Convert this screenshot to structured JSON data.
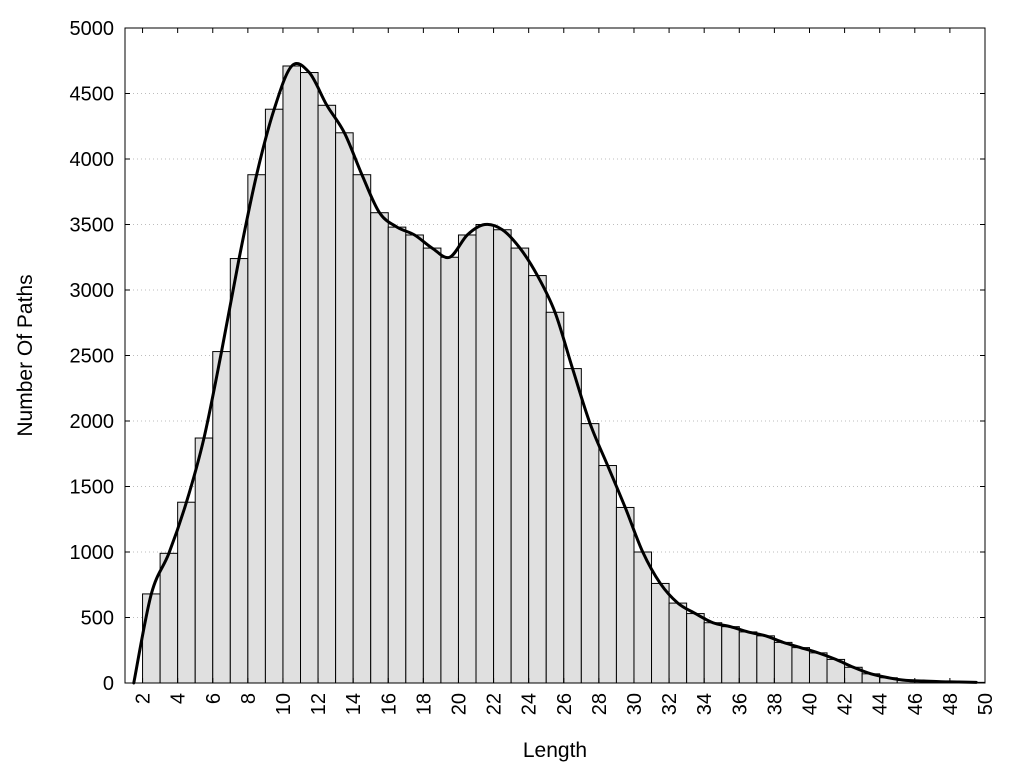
{
  "chart_data": {
    "type": "bar",
    "xlabel": "Length",
    "ylabel": "Number Of Paths",
    "xlim": [
      1,
      50
    ],
    "ylim": [
      0,
      5000
    ],
    "yticks": [
      0,
      500,
      1000,
      1500,
      2000,
      2500,
      3000,
      3500,
      4000,
      4500,
      5000
    ],
    "xticks": [
      2,
      4,
      6,
      8,
      10,
      12,
      14,
      16,
      18,
      20,
      22,
      24,
      26,
      28,
      30,
      32,
      34,
      36,
      38,
      40,
      42,
      44,
      46,
      48,
      50
    ],
    "grid": "horizontal dotted",
    "x": [
      3,
      4,
      5,
      6,
      7,
      8,
      9,
      10,
      11,
      12,
      13,
      14,
      15,
      16,
      17,
      18,
      19,
      20,
      21,
      22,
      23,
      24,
      25,
      26,
      27,
      28,
      29,
      30,
      31,
      32,
      33,
      34,
      35,
      36,
      37,
      38,
      39,
      40,
      41,
      42,
      43,
      44,
      45,
      46,
      47,
      48,
      49,
      50
    ],
    "values": [
      680,
      990,
      1380,
      1870,
      2530,
      3240,
      3880,
      4380,
      4710,
      4660,
      4410,
      4200,
      3880,
      3590,
      3480,
      3420,
      3320,
      3250,
      3420,
      3500,
      3460,
      3320,
      3110,
      2830,
      2400,
      1980,
      1660,
      1340,
      1000,
      760,
      610,
      530,
      460,
      430,
      390,
      360,
      310,
      270,
      230,
      180,
      120,
      70,
      40,
      20,
      15,
      10,
      8,
      5
    ],
    "series": [
      {
        "name": "",
        "type": "bar",
        "fill": "#e0e0e0"
      },
      {
        "name": "",
        "type": "line",
        "color": "#000000"
      }
    ]
  }
}
